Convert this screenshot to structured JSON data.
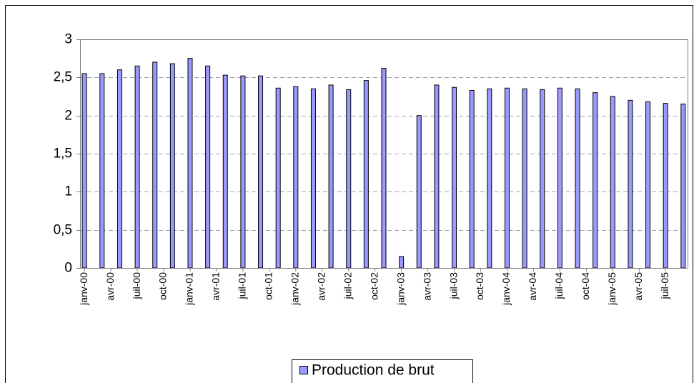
{
  "chart_data": {
    "type": "bar",
    "series": [
      {
        "name": "Production de brut",
        "color": "#9999ff",
        "values": [
          2.55,
          null,
          2.55,
          null,
          2.6,
          null,
          2.65,
          null,
          2.7,
          null,
          2.68,
          null,
          2.75,
          null,
          2.65,
          null,
          2.53,
          null,
          2.52,
          null,
          2.52,
          null,
          2.36,
          null,
          2.38,
          null,
          2.35,
          null,
          2.4,
          null,
          2.34,
          null,
          2.46,
          null,
          2.62,
          null,
          0.15,
          null,
          2.0,
          null,
          2.4,
          null,
          2.37,
          null,
          2.33,
          null,
          2.35,
          null,
          2.36,
          null,
          2.35,
          null,
          2.34,
          null,
          2.36,
          null,
          2.35,
          null,
          2.3,
          null,
          2.25,
          null,
          2.2,
          null,
          2.18,
          null,
          2.16,
          null,
          2.15
        ]
      }
    ],
    "categories": [
      "janv-00",
      null,
      null,
      "avr-00",
      null,
      null,
      "juil-00",
      null,
      null,
      "oct-00",
      null,
      null,
      "janv-01",
      null,
      null,
      "avr-01",
      null,
      null,
      "juil-01",
      null,
      null,
      "oct-01",
      null,
      null,
      "janv-02",
      null,
      null,
      "avr-02",
      null,
      null,
      "juil-02",
      null,
      null,
      "oct-02",
      null,
      null,
      "janv-03",
      null,
      null,
      "avr-03",
      null,
      null,
      "juil-03",
      null,
      null,
      "oct-03",
      null,
      null,
      "janv-04",
      null,
      null,
      "avr-04",
      null,
      null,
      "juil-04",
      null,
      null,
      "oct-04",
      null,
      null,
      "janv-05",
      null,
      null,
      "avr-05",
      null,
      null,
      "juil-05",
      null,
      null
    ],
    "ylim": [
      0,
      3
    ],
    "yticks": [
      0,
      {
        "value": 0.5,
        "label": "0,5"
      },
      1,
      {
        "value": 1.5,
        "label": "1,5"
      },
      2,
      {
        "value": 2.5,
        "label": "2,5"
      },
      3
    ],
    "grid": true,
    "legend": "bottom"
  }
}
